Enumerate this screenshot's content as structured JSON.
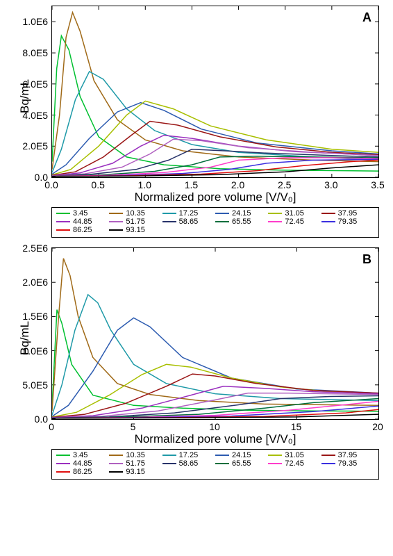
{
  "figure": {
    "font_family": "Arial",
    "colors": {
      "background": "#ffffff",
      "axis": "#000000",
      "text": "#000000"
    },
    "series_colors": {
      "3.45": "#00c030",
      "10.35": "#a06a18",
      "17.25": "#1f9aa8",
      "24.15": "#2c5bb0",
      "31.05": "#a8bf00",
      "37.95": "#9a1616",
      "44.85": "#9a2fbf",
      "51.75": "#b060c0",
      "58.65": "#28336a",
      "65.55": "#006e3c",
      "72.45": "#ff3dcb",
      "79.35": "#3b2fe0",
      "86.25": "#e01010",
      "93.15": "#000000"
    },
    "legend_order": [
      "3.45",
      "10.35",
      "17.25",
      "24.15",
      "31.05",
      "37.95",
      "44.85",
      "51.75",
      "58.65",
      "65.55",
      "72.45",
      "79.35",
      "86.25",
      "93.15"
    ],
    "legend_fontsize": 11,
    "panels": {
      "A": {
        "label": "A",
        "type": "line",
        "xlabel": "Normalized pore volume [V/V₀]",
        "ylabel": "Bq/mL",
        "label_fontsize": 17,
        "tick_fontsize": 14,
        "panel_label_fontsize": 18,
        "xlim": [
          0.0,
          3.5
        ],
        "ylim": [
          0,
          1100000
        ],
        "xticks": [
          0.0,
          0.5,
          1.0,
          1.5,
          2.0,
          2.5,
          3.0,
          3.5
        ],
        "yticks": [
          0,
          200000,
          400000,
          600000,
          800000,
          1000000
        ],
        "ytick_labels": [
          "0.0",
          "2.0E5",
          "4.0E5",
          "6.0E5",
          "8.0E5",
          "1.0E6"
        ],
        "xtick_labels": [
          "0.0",
          "0.5",
          "1.0",
          "1.5",
          "2.0",
          "2.5",
          "3.0",
          "3.5"
        ],
        "line_width": 1.5,
        "series": {
          "3.45": {
            "x": [
              0,
              0.05,
              0.1,
              0.18,
              0.3,
              0.5,
              0.8,
              1.2,
              1.8,
              2.5,
              3.5
            ],
            "y": [
              100000,
              700000,
              910000,
              820000,
              520000,
              260000,
              130000,
              80000,
              55000,
              45000,
              40000
            ]
          },
          "10.35": {
            "x": [
              0,
              0.08,
              0.15,
              0.22,
              0.3,
              0.45,
              0.7,
              1.0,
              1.4,
              2.0,
              2.8,
              3.5
            ],
            "y": [
              50000,
              400000,
              900000,
              1060000,
              940000,
              620000,
              370000,
              240000,
              170000,
              130000,
              110000,
              100000
            ]
          },
          "17.25": {
            "x": [
              0,
              0.1,
              0.25,
              0.4,
              0.55,
              0.8,
              1.1,
              1.5,
              2.0,
              2.8,
              3.5
            ],
            "y": [
              30000,
              180000,
              500000,
              680000,
              630000,
              440000,
              300000,
              210000,
              160000,
              130000,
              110000
            ]
          },
          "24.15": {
            "x": [
              0,
              0.15,
              0.4,
              0.7,
              0.95,
              1.2,
              1.6,
              2.2,
              3.0,
              3.5
            ],
            "y": [
              20000,
              80000,
              250000,
              420000,
              480000,
              430000,
              310000,
              220000,
              170000,
              150000
            ]
          },
          "31.05": {
            "x": [
              0,
              0.2,
              0.5,
              0.8,
              1.0,
              1.3,
              1.7,
              2.3,
              3.0,
              3.5
            ],
            "y": [
              15000,
              50000,
              200000,
              400000,
              490000,
              440000,
              330000,
              240000,
              180000,
              160000
            ]
          },
          "37.95": {
            "x": [
              0,
              0.25,
              0.55,
              0.85,
              1.05,
              1.35,
              1.8,
              2.4,
              3.0,
              3.5
            ],
            "y": [
              12000,
              35000,
              130000,
              270000,
              360000,
              335000,
              260000,
              195000,
              160000,
              145000
            ]
          },
          "44.85": {
            "x": [
              0,
              0.3,
              0.65,
              0.95,
              1.2,
              1.5,
              2.0,
              2.6,
              3.5
            ],
            "y": [
              10000,
              28000,
              90000,
              200000,
              270000,
              250000,
              200000,
              165000,
              140000
            ]
          },
          "51.75": {
            "x": [
              0,
              0.35,
              0.75,
              1.05,
              1.3,
              1.6,
              2.1,
              2.8,
              3.5
            ],
            "y": [
              9000,
              22000,
              65000,
              150000,
              245000,
              235000,
              190000,
              160000,
              140000
            ]
          },
          "58.65": {
            "x": [
              0,
              0.4,
              0.9,
              1.25,
              1.5,
              1.85,
              2.3,
              3.0,
              3.5
            ],
            "y": [
              8000,
              18000,
              50000,
              110000,
              180000,
              170000,
              155000,
              140000,
              130000
            ]
          },
          "65.55": {
            "x": [
              0,
              0.5,
              1.1,
              1.5,
              1.8,
              2.2,
              2.8,
              3.5
            ],
            "y": [
              7000,
              14000,
              38000,
              80000,
              130000,
              135000,
              130000,
              125000
            ]
          },
          "72.45": {
            "x": [
              0,
              0.6,
              1.2,
              1.7,
              2.0,
              2.5,
              3.0,
              3.5
            ],
            "y": [
              6500,
              12000,
              30000,
              65000,
              110000,
              125000,
              125000,
              120000
            ]
          },
          "79.35": {
            "x": [
              0,
              0.7,
              1.4,
              1.9,
              2.3,
              2.8,
              3.5
            ],
            "y": [
              6000,
              10000,
              24000,
              50000,
              90000,
              110000,
              115000
            ]
          },
          "86.25": {
            "x": [
              0,
              0.8,
              1.6,
              2.2,
              2.7,
              3.2,
              3.5
            ],
            "y": [
              5500,
              9000,
              20000,
              42000,
              75000,
              100000,
              110000
            ]
          },
          "93.15": {
            "x": [
              0,
              0.9,
              1.8,
              2.5,
              3.0,
              3.5
            ],
            "y": [
              5000,
              8000,
              17000,
              35000,
              60000,
              80000
            ]
          }
        }
      },
      "B": {
        "label": "B",
        "type": "line",
        "xlabel": "Normalized pore volume [V/V₀]",
        "ylabel": "Bq/mL",
        "label_fontsize": 17,
        "tick_fontsize": 14,
        "panel_label_fontsize": 18,
        "xlim": [
          0,
          20
        ],
        "ylim": [
          0,
          2500000
        ],
        "xticks": [
          0,
          5,
          10,
          15,
          20
        ],
        "yticks": [
          0,
          500000,
          1000000,
          1500000,
          2000000,
          2500000
        ],
        "ytick_labels": [
          "0.0",
          "5.0E5",
          "1.0E6",
          "1.5E6",
          "2.0E6",
          "2.5E6"
        ],
        "xtick_labels": [
          "0",
          "5",
          "10",
          "15",
          "20"
        ],
        "line_width": 1.5,
        "series": {
          "3.45": {
            "x": [
              0,
              0.3,
              0.6,
              1.2,
              2.5,
              5,
              8,
              12,
              16,
              20
            ],
            "y": [
              200000,
              1600000,
              1400000,
              800000,
              350000,
              200000,
              160000,
              130000,
              120000,
              115000
            ]
          },
          "10.35": {
            "x": [
              0,
              0.4,
              0.7,
              1.1,
              1.6,
              2.5,
              4,
              6,
              9,
              13,
              20
            ],
            "y": [
              120000,
              1500000,
              2350000,
              2100000,
              1500000,
              900000,
              520000,
              360000,
              270000,
              220000,
              200000
            ]
          },
          "17.25": {
            "x": [
              0,
              0.6,
              1.4,
              2.2,
              2.8,
              3.6,
              5,
              7,
              10,
              14,
              20
            ],
            "y": [
              60000,
              500000,
              1300000,
              1820000,
              1700000,
              1300000,
              800000,
              520000,
              370000,
              300000,
              270000
            ]
          },
          "24.15": {
            "x": [
              0,
              1.0,
              2.5,
              4.0,
              5.0,
              6.0,
              8,
              11,
              15,
              20
            ],
            "y": [
              40000,
              200000,
              700000,
              1300000,
              1480000,
              1350000,
              900000,
              600000,
              440000,
              380000
            ]
          },
          "31.05": {
            "x": [
              0,
              1.5,
              3.5,
              5.5,
              7.0,
              8.5,
              11,
              14,
              17,
              20
            ],
            "y": [
              30000,
              100000,
              350000,
              650000,
              800000,
              760000,
              600000,
              470000,
              400000,
              370000
            ]
          },
          "37.95": {
            "x": [
              0,
              2.0,
              4.5,
              7.0,
              8.6,
              10,
              12.5,
              16,
              20
            ],
            "y": [
              25000,
              70000,
              230000,
              480000,
              660000,
              630000,
              520000,
              420000,
              380000
            ]
          },
          "44.85": {
            "x": [
              0,
              2.5,
              5.5,
              8.5,
              10.5,
              13,
              16,
              20
            ],
            "y": [
              22000,
              50000,
              160000,
              350000,
              480000,
              450000,
              400000,
              370000
            ]
          },
          "51.75": {
            "x": [
              0,
              3,
              6.5,
              10,
              12,
              14.5,
              17,
              20
            ],
            "y": [
              20000,
              40000,
              120000,
              280000,
              380000,
              380000,
              370000,
              360000
            ]
          },
          "58.65": {
            "x": [
              0,
              3.5,
              7.5,
              11.5,
              14,
              17,
              20
            ],
            "y": [
              18000,
              32000,
              90000,
              210000,
              300000,
              330000,
              340000
            ]
          },
          "65.55": {
            "x": [
              0,
              4,
              9,
              13,
              16,
              20
            ],
            "y": [
              16000,
              28000,
              70000,
              160000,
              240000,
              300000
            ]
          },
          "72.45": {
            "x": [
              0,
              5,
              10,
              14.5,
              18,
              20
            ],
            "y": [
              15000,
              24000,
              55000,
              130000,
              210000,
              260000
            ]
          },
          "79.35": {
            "x": [
              0,
              6,
              11,
              16,
              20
            ],
            "y": [
              14000,
              22000,
              45000,
              110000,
              190000
            ]
          },
          "86.25": {
            "x": [
              0,
              7,
              13,
              18,
              20
            ],
            "y": [
              13000,
              20000,
              38000,
              90000,
              140000
            ]
          },
          "93.15": {
            "x": [
              0,
              8,
              15,
              20
            ],
            "y": [
              12000,
              18000,
              32000,
              70000
            ]
          }
        }
      }
    }
  }
}
